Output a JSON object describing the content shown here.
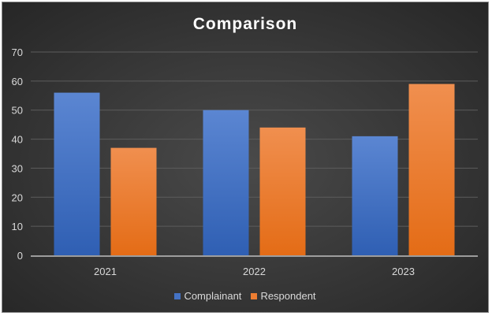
{
  "chart_data": {
    "type": "bar",
    "title": "Comparison",
    "categories": [
      "2021",
      "2022",
      "2023"
    ],
    "series": [
      {
        "name": "Complainant",
        "values": [
          56,
          50,
          41
        ],
        "color": "#4472c4"
      },
      {
        "name": "Respondent",
        "values": [
          37,
          44,
          59
        ],
        "color": "#ed7d31"
      }
    ],
    "ylim": [
      0,
      70
    ],
    "yticks": [
      "0",
      "10",
      "20",
      "30",
      "40",
      "50",
      "60",
      "70"
    ],
    "grid": true,
    "legend": "bottom",
    "xlabel": "",
    "ylabel": ""
  }
}
